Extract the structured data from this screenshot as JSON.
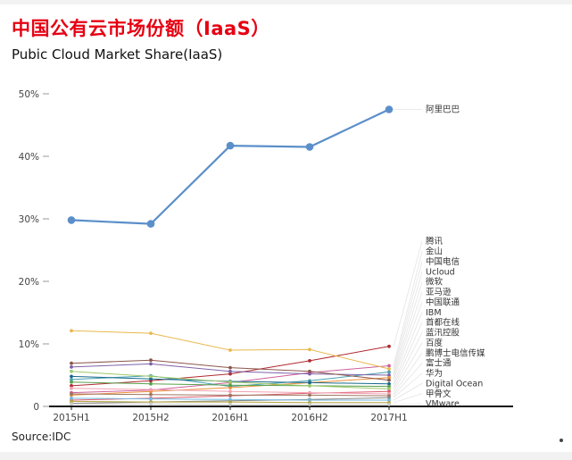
{
  "page": {
    "title": "中国公有云市场份额（IaaS）",
    "subtitle": "Pubic Cloud Market Share(IaaS)",
    "source": "Source:IDC",
    "title_color": "#e60012"
  },
  "chart_data": {
    "type": "line",
    "title": "中国公有云市场份额（IaaS）",
    "subtitle": "Pubic Cloud Market Share(IaaS)",
    "source": "Source:IDC",
    "categories": [
      "2015H1",
      "2015H2",
      "2016H1",
      "2016H2",
      "2017H1"
    ],
    "xlabel": "",
    "ylabel": "",
    "ylim": [
      0,
      50
    ],
    "yticks": [
      0,
      10,
      20,
      30,
      40,
      50
    ],
    "ytick_labels": [
      "0",
      "10%",
      "20%",
      "30%",
      "40%",
      "50%"
    ],
    "grid": false,
    "legend_position": "right-labels",
    "series": [
      {
        "name": "阿里巴巴",
        "emphasis": true,
        "color": "#5b8fc9",
        "values": [
          29.8,
          29.2,
          41.7,
          41.5,
          47.5
        ]
      },
      {
        "name": "腾讯",
        "emphasis": false,
        "color": "#b02a30",
        "values": [
          3.3,
          4.1,
          5.2,
          7.3,
          9.6
        ]
      },
      {
        "name": "金山",
        "emphasis": false,
        "color": "#cf5e9a",
        "values": [
          2.2,
          2.6,
          3.8,
          5.4,
          6.5
        ]
      },
      {
        "name": "中国电信",
        "emphasis": false,
        "color": "#e8b84d",
        "values": [
          12.1,
          11.7,
          9.0,
          9.1,
          6.0
        ]
      },
      {
        "name": "Ucloud",
        "emphasis": false,
        "color": "#49a0b0",
        "values": [
          4.3,
          4.9,
          3.2,
          4.1,
          5.5
        ]
      },
      {
        "name": "微软",
        "emphasis": false,
        "color": "#7d62a8",
        "values": [
          6.3,
          6.8,
          5.6,
          5.2,
          5.0
        ]
      },
      {
        "name": "亚马逊",
        "emphasis": false,
        "color": "#ee8f38",
        "values": [
          1.8,
          2.4,
          3.0,
          3.8,
          4.6
        ]
      },
      {
        "name": "中国联通",
        "emphasis": false,
        "color": "#8c564b",
        "values": [
          6.9,
          7.4,
          6.2,
          5.6,
          4.2
        ]
      },
      {
        "name": "IBM",
        "emphasis": false,
        "color": "#17688c",
        "values": [
          4.8,
          4.4,
          4.0,
          3.8,
          3.6
        ]
      },
      {
        "name": "首都在线",
        "emphasis": false,
        "color": "#59a14f",
        "values": [
          3.9,
          3.6,
          3.4,
          3.3,
          3.2
        ]
      },
      {
        "name": "蓝汛控股",
        "emphasis": false,
        "color": "#9ec96a",
        "values": [
          5.6,
          4.8,
          3.9,
          3.3,
          2.8
        ]
      },
      {
        "name": "百度",
        "emphasis": false,
        "color": "#de5b6d",
        "values": [
          1.0,
          1.3,
          1.7,
          2.1,
          2.4
        ]
      },
      {
        "name": "鹏博士电信传媒",
        "emphasis": false,
        "color": "#f2a0b2",
        "values": [
          2.9,
          2.7,
          2.4,
          2.2,
          2.0
        ]
      },
      {
        "name": "富士通",
        "emphasis": false,
        "color": "#9c755f",
        "values": [
          2.0,
          1.9,
          1.8,
          1.8,
          1.7
        ]
      },
      {
        "name": "华为",
        "emphasis": false,
        "color": "#888888",
        "values": [
          0.5,
          0.7,
          0.9,
          1.1,
          1.4
        ]
      },
      {
        "name": "Digital Ocean",
        "emphasis": false,
        "color": "#74b9e0",
        "values": [
          1.3,
          1.2,
          1.1,
          1.0,
          1.0
        ]
      },
      {
        "name": "甲骨文",
        "emphasis": false,
        "color": "#b5a642",
        "values": [
          0.8,
          0.7,
          0.7,
          0.6,
          0.6
        ]
      },
      {
        "name": "VMware",
        "emphasis": false,
        "color": "#c9c9c9",
        "values": [
          0.4,
          0.4,
          0.3,
          0.3,
          0.3
        ]
      }
    ]
  }
}
